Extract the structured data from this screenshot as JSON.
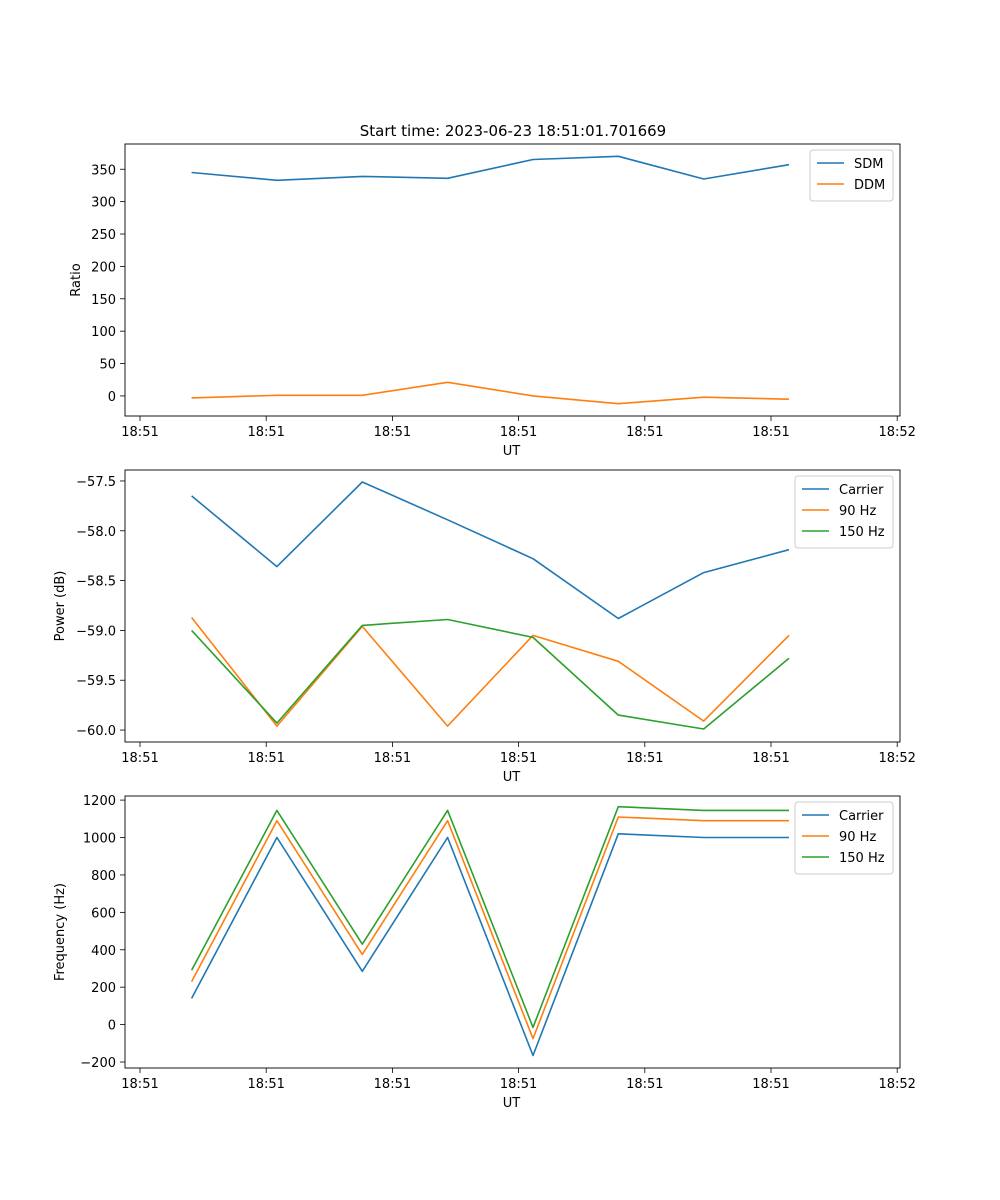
{
  "title": "Start time: 2023-06-23 18:51:01.701669",
  "colors": {
    "blue": "#1f77b4",
    "orange": "#ff7f0e",
    "green": "#2ca02c"
  },
  "chart_data": [
    {
      "type": "line",
      "xlabel": "UT",
      "ylabel": "Ratio",
      "x_tick_labels": [
        "18:51",
        "18:51",
        "18:51",
        "18:51",
        "18:51",
        "18:51",
        "18:52"
      ],
      "yticks": [
        0,
        50,
        100,
        150,
        200,
        250,
        300,
        350
      ],
      "ylim": [
        -31,
        389
      ],
      "xlim": [
        -0.38,
        8.7
      ],
      "x": [
        0.4,
        1.4,
        2.4,
        3.4,
        4.4,
        5.4,
        6.4,
        7.4
      ],
      "legend": "top-right",
      "series": [
        {
          "name": "SDM",
          "color": "#1f77b4",
          "values": [
            345,
            333,
            339,
            336,
            365,
            370,
            335,
            357
          ]
        },
        {
          "name": "DDM",
          "color": "#ff7f0e",
          "values": [
            -3,
            1,
            1,
            21,
            0,
            -12,
            -2,
            -5
          ]
        }
      ]
    },
    {
      "type": "line",
      "xlabel": "UT",
      "ylabel": "Power (dB)",
      "x_tick_labels": [
        "18:51",
        "18:51",
        "18:51",
        "18:51",
        "18:51",
        "18:51",
        "18:52"
      ],
      "yticks": [
        -60.0,
        -59.5,
        -59.0,
        -58.5,
        -58.0,
        -57.5
      ],
      "ytick_labels": [
        "−60.0",
        "−59.5",
        "−59.0",
        "−58.5",
        "−58.0",
        "−57.5"
      ],
      "ylim": [
        -60.12,
        -57.39
      ],
      "xlim": [
        -0.38,
        8.7
      ],
      "x": [
        0.4,
        1.4,
        2.4,
        3.4,
        4.4,
        5.4,
        6.4,
        7.4
      ],
      "legend": "top-right",
      "series": [
        {
          "name": "Carrier",
          "color": "#1f77b4",
          "values": [
            -57.65,
            -58.36,
            -57.51,
            -57.89,
            -58.28,
            -58.88,
            -58.42,
            -58.19
          ]
        },
        {
          "name": "90 Hz",
          "color": "#ff7f0e",
          "values": [
            -58.87,
            -59.96,
            -58.96,
            -59.96,
            -59.05,
            -59.31,
            -59.91,
            -59.05
          ]
        },
        {
          "name": "150 Hz",
          "color": "#2ca02c",
          "values": [
            -59.0,
            -59.93,
            -58.95,
            -58.89,
            -59.07,
            -59.85,
            -59.99,
            -59.28
          ]
        }
      ]
    },
    {
      "type": "line",
      "xlabel": "UT",
      "ylabel": "Frequency (Hz)",
      "x_tick_labels": [
        "18:51",
        "18:51",
        "18:51",
        "18:51",
        "18:51",
        "18:51",
        "18:52"
      ],
      "yticks": [
        -200,
        0,
        200,
        400,
        600,
        800,
        1000,
        1200
      ],
      "ytick_labels": [
        "−200",
        "0",
        "200",
        "400",
        "600",
        "800",
        "1000",
        "1200"
      ],
      "ylim": [
        -232,
        1222
      ],
      "xlim": [
        -0.38,
        8.7
      ],
      "x": [
        0.4,
        1.4,
        2.4,
        3.4,
        4.4,
        5.4,
        6.4,
        7.4
      ],
      "legend": "top-right",
      "series": [
        {
          "name": "Carrier",
          "color": "#1f77b4",
          "values": [
            140,
            1000,
            285,
            1000,
            -165,
            1020,
            1000,
            1000
          ]
        },
        {
          "name": "90 Hz",
          "color": "#ff7f0e",
          "values": [
            230,
            1090,
            375,
            1090,
            -75,
            1110,
            1090,
            1090
          ]
        },
        {
          "name": "150 Hz",
          "color": "#2ca02c",
          "values": [
            290,
            1145,
            430,
            1145,
            -15,
            1165,
            1145,
            1145
          ]
        }
      ]
    }
  ]
}
